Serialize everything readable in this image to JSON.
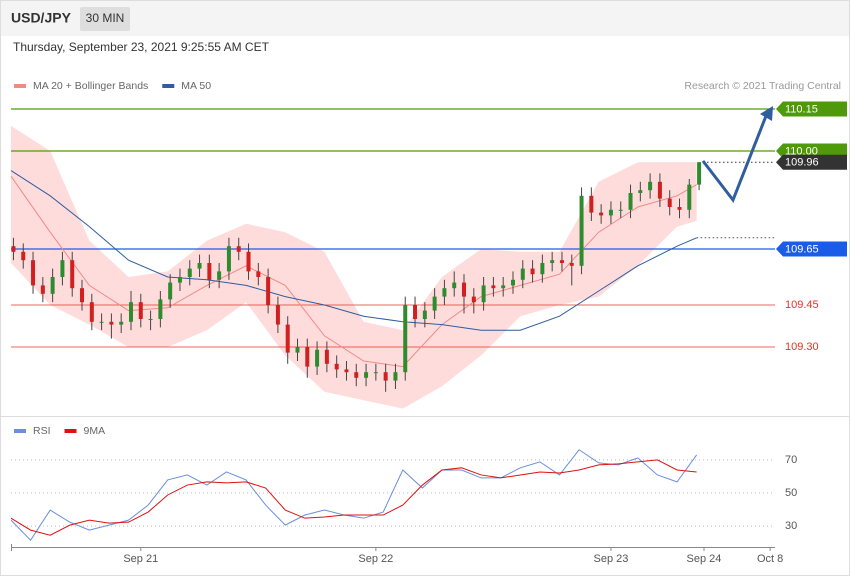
{
  "header": {
    "title": "USD/JPY",
    "timeframe": "30 MIN",
    "date": "Thursday, September 23, 2021 9:25:55 AM CET",
    "credit": "Research © 2021 Trading Central"
  },
  "chart_data": [
    {
      "type": "candlestick",
      "xlim": [
        0,
        156
      ],
      "ylim": [
        109.05,
        110.2
      ],
      "up_color": "#2e8b2e",
      "down_color": "#d0201f",
      "candles": {
        "x": [
          0.5,
          2.5,
          4.5,
          6.5,
          8.5,
          10.5,
          12.5,
          14.5,
          16.5,
          18.5,
          20.5,
          22.5,
          24.5,
          26.5,
          28.5,
          30.5,
          32.5,
          34.5,
          36.5,
          38.5,
          40.5,
          42.5,
          44.5,
          46.5,
          48.5,
          50.5,
          52.5,
          54.5,
          56.5,
          58.5,
          60.5,
          62.5,
          64.5,
          66.5,
          68.5,
          70.5,
          72.5,
          74.5,
          76.5,
          78.5,
          80.5,
          82.5,
          84.5,
          86.5,
          88.5,
          90.5,
          92.5,
          94.5,
          96.5,
          98.5,
          100.5,
          102.5,
          104.5,
          106.5,
          108.5,
          110.5,
          112.5,
          114.5,
          116.5,
          118.5,
          120.5,
          122.5,
          124.5,
          126.5,
          128.5,
          130.5,
          132.5,
          134.5,
          136.5,
          138.5,
          140.5
        ],
        "open": [
          109.66,
          109.64,
          109.61,
          109.52,
          109.49,
          109.55,
          109.61,
          109.51,
          109.46,
          109.39,
          109.39,
          109.38,
          109.39,
          109.46,
          109.4,
          109.4,
          109.47,
          109.53,
          109.55,
          109.58,
          109.6,
          109.54,
          109.57,
          109.66,
          109.64,
          109.57,
          109.55,
          109.45,
          109.38,
          109.28,
          109.3,
          109.23,
          109.29,
          109.24,
          109.22,
          109.21,
          109.19,
          109.21,
          109.21,
          109.18,
          109.21,
          109.45,
          109.4,
          109.43,
          109.48,
          109.51,
          109.53,
          109.48,
          109.46,
          109.52,
          109.51,
          109.52,
          109.54,
          109.58,
          109.56,
          109.6,
          109.61,
          109.6,
          109.59,
          109.84,
          109.78,
          109.77,
          109.79,
          109.79,
          109.85,
          109.86,
          109.89,
          109.83,
          109.8,
          109.79,
          109.88
        ],
        "high": [
          109.69,
          109.67,
          109.64,
          109.55,
          109.58,
          109.64,
          109.64,
          109.54,
          109.49,
          109.42,
          109.42,
          109.42,
          109.5,
          109.49,
          109.43,
          109.5,
          109.56,
          109.58,
          109.61,
          109.63,
          109.63,
          109.6,
          109.69,
          109.69,
          109.67,
          109.6,
          109.58,
          109.48,
          109.41,
          109.33,
          109.33,
          109.32,
          109.32,
          109.27,
          109.25,
          109.24,
          109.24,
          109.24,
          109.24,
          109.24,
          109.48,
          109.48,
          109.46,
          109.51,
          109.54,
          109.57,
          109.56,
          109.51,
          109.55,
          109.55,
          109.55,
          109.57,
          109.61,
          109.61,
          109.63,
          109.64,
          109.64,
          109.63,
          109.87,
          109.87,
          109.81,
          109.82,
          109.82,
          109.88,
          109.89,
          109.92,
          109.92,
          109.86,
          109.83,
          109.9,
          109.96
        ],
        "low": [
          109.61,
          109.58,
          109.49,
          109.46,
          109.46,
          109.52,
          109.48,
          109.43,
          109.36,
          109.36,
          109.33,
          109.35,
          109.36,
          109.37,
          109.36,
          109.37,
          109.44,
          109.5,
          109.52,
          109.55,
          109.51,
          109.51,
          109.54,
          109.61,
          109.54,
          109.52,
          109.42,
          109.35,
          109.24,
          109.25,
          109.19,
          109.2,
          109.21,
          109.19,
          109.18,
          109.16,
          109.16,
          109.18,
          109.14,
          109.15,
          109.18,
          109.37,
          109.37,
          109.4,
          109.45,
          109.48,
          109.42,
          109.42,
          109.43,
          109.48,
          109.48,
          109.49,
          109.51,
          109.53,
          109.53,
          109.57,
          109.57,
          109.52,
          109.56,
          109.75,
          109.74,
          109.74,
          109.76,
          109.76,
          109.82,
          109.83,
          109.8,
          109.77,
          109.76,
          109.76,
          109.86
        ],
        "close": [
          109.64,
          109.61,
          109.52,
          109.49,
          109.55,
          109.61,
          109.51,
          109.46,
          109.39,
          109.39,
          109.38,
          109.39,
          109.46,
          109.4,
          109.4,
          109.47,
          109.53,
          109.55,
          109.58,
          109.6,
          109.54,
          109.57,
          109.66,
          109.64,
          109.57,
          109.55,
          109.45,
          109.38,
          109.28,
          109.3,
          109.23,
          109.29,
          109.24,
          109.22,
          109.21,
          109.19,
          109.21,
          109.21,
          109.18,
          109.21,
          109.45,
          109.4,
          109.43,
          109.48,
          109.51,
          109.53,
          109.48,
          109.46,
          109.52,
          109.51,
          109.52,
          109.54,
          109.58,
          109.56,
          109.6,
          109.61,
          109.6,
          109.59,
          109.84,
          109.78,
          109.77,
          109.79,
          109.79,
          109.85,
          109.86,
          109.89,
          109.83,
          109.8,
          109.79,
          109.88,
          109.96
        ]
      },
      "series": [
        {
          "name": "MA 20 + Bollinger Bands",
          "color": "#f08a84",
          "band_color": "#ffd6d6",
          "x": [
            0,
            8,
            16,
            24,
            32,
            40,
            48,
            56,
            64,
            72,
            80,
            88,
            96,
            104,
            112,
            120,
            128,
            136,
            140
          ],
          "values": [
            109.91,
            109.71,
            109.52,
            109.43,
            109.44,
            109.52,
            109.59,
            109.52,
            109.34,
            109.25,
            109.23,
            109.38,
            109.48,
            109.52,
            109.56,
            109.71,
            109.8,
            109.84,
            109.88
          ],
          "upper": [
            110.09,
            110.0,
            109.68,
            109.55,
            109.57,
            109.68,
            109.74,
            109.71,
            109.64,
            109.39,
            109.36,
            109.55,
            109.65,
            109.64,
            109.64,
            109.89,
            109.96,
            109.96,
            109.96
          ],
          "lower": [
            109.6,
            109.45,
            109.38,
            109.3,
            109.3,
            109.36,
            109.46,
            109.27,
            109.14,
            109.11,
            109.08,
            109.16,
            109.27,
            109.41,
            109.45,
            109.48,
            109.59,
            109.73,
            109.75
          ]
        },
        {
          "name": "MA 50",
          "color": "#2f5d9e",
          "x": [
            0,
            8,
            16,
            24,
            32,
            40,
            48,
            56,
            64,
            72,
            80,
            88,
            96,
            104,
            112,
            120,
            128,
            136,
            140
          ],
          "values": [
            109.93,
            109.84,
            109.73,
            109.61,
            109.55,
            109.54,
            109.52,
            109.48,
            109.45,
            109.41,
            109.39,
            109.38,
            109.36,
            109.36,
            109.41,
            109.5,
            109.59,
            109.66,
            109.69
          ]
        }
      ],
      "levels": [
        {
          "value": 110.15,
          "color": "#4f9a0a",
          "line": "solid",
          "badge": true
        },
        {
          "value": 110,
          "label": "110.00",
          "color": "#4f9a0a",
          "line": "solid",
          "badge": true
        },
        {
          "value": 109.96,
          "color": "#333333",
          "line": "dotted",
          "badge": true
        },
        {
          "value": 109.65,
          "color": "#1a5ce8",
          "line": "solid",
          "badge": true
        },
        {
          "value": 109.45,
          "color": "#e8302a",
          "line": "solid",
          "badge": false
        },
        {
          "value": 109.3,
          "label": "109.30",
          "color": "#e8302a",
          "line": "solid",
          "badge": false
        }
      ]
    },
    {
      "type": "line",
      "xlim": [
        0,
        156
      ],
      "ylim": [
        18,
        82
      ],
      "yticks": [
        30,
        50,
        70
      ],
      "grid": true,
      "xticks": [
        {
          "value": 26.5,
          "label": "Sep 21"
        },
        {
          "value": 74.5,
          "label": "Sep 22"
        },
        {
          "value": 122.5,
          "label": "Sep 23"
        },
        {
          "value": 141.5,
          "label": "Sep 24"
        },
        {
          "value": 155,
          "label": "Oct 8"
        }
      ],
      "series": [
        {
          "name": "RSI",
          "color": "#6b8fdc",
          "x": [
            0,
            4,
            8,
            12,
            16,
            20,
            24,
            28,
            32,
            36,
            40,
            44,
            48,
            52,
            56,
            60,
            64,
            68,
            72,
            76,
            80,
            84,
            88,
            92,
            96,
            100,
            104,
            108,
            112,
            116,
            120,
            124,
            128,
            132,
            136,
            140
          ],
          "values": [
            33.6,
            21.5,
            39.7,
            32.4,
            27.6,
            30.6,
            33.6,
            42.7,
            57.9,
            60.9,
            54.8,
            62.7,
            57.9,
            42.7,
            30.6,
            36.7,
            39.7,
            36.7,
            34.8,
            38.5,
            63.9,
            53.0,
            63.9,
            63.9,
            59.1,
            59.1,
            65.2,
            68.8,
            60.9,
            76.1,
            68.2,
            67.0,
            71.2,
            60.9,
            56.7,
            73.0
          ]
        },
        {
          "name": "9MA",
          "color": "#e01010",
          "x": [
            0,
            4,
            8,
            12,
            16,
            20,
            24,
            28,
            32,
            36,
            40,
            44,
            48,
            52,
            56,
            60,
            64,
            68,
            72,
            76,
            80,
            84,
            88,
            92,
            96,
            100,
            104,
            108,
            112,
            116,
            120,
            124,
            128,
            132,
            136,
            140
          ],
          "values": [
            34.8,
            27.6,
            24.5,
            30.6,
            33.6,
            31.8,
            32.4,
            38.5,
            48.8,
            54.8,
            56.7,
            56.1,
            56.7,
            53.0,
            39.7,
            34.8,
            35.5,
            36.7,
            36.7,
            36.7,
            42.7,
            54.8,
            63.9,
            65.2,
            60.9,
            59.1,
            60.9,
            62.7,
            62.1,
            63.9,
            67.0,
            67.6,
            68.8,
            70.0,
            63.9,
            62.7
          ]
        }
      ]
    }
  ]
}
